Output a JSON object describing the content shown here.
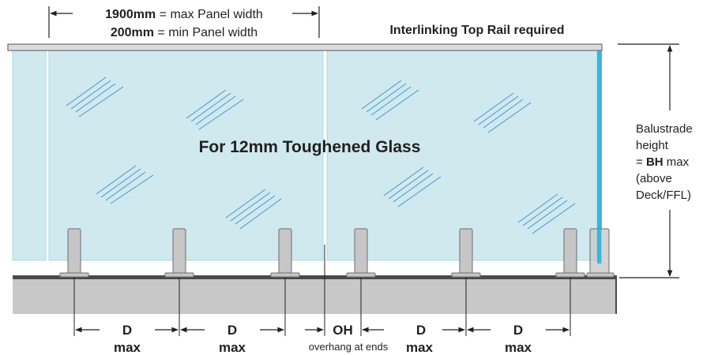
{
  "panel_width_note": {
    "max_value": "1900mm",
    "max_text": " = max Panel width",
    "min_value": "200mm",
    "min_text": " = min Panel width"
  },
  "top_rail_note": "Interlinking Top Rail required",
  "glass_label": "For 12mm Toughened Glass",
  "height_note": {
    "line1": "Balustrade",
    "line2": "height",
    "line3_prefix": "= ",
    "line3_bold": "BH",
    "line3_suffix": " max",
    "line4": "(above",
    "line5": "Deck/FFL)"
  },
  "spacing_labels": [
    {
      "top": "D",
      "bottom": "max"
    },
    {
      "top": "D",
      "bottom": "max"
    },
    {
      "top": "OH",
      "bottom": "overhang at ends"
    },
    {
      "top": "D",
      "bottom": "max"
    },
    {
      "top": "D",
      "bottom": "max"
    }
  ],
  "colors": {
    "glass": "#cfe9ef",
    "glass_edge": "#a9dbe6",
    "glass_edge_blue": "#38b6e0",
    "post": "#c6c6c6",
    "post_outline": "#6d6d6d",
    "deck": "#c8c8c8",
    "deck_top": "#4a4a4a",
    "rail": "#dcdcdc",
    "line": "#231f20"
  }
}
